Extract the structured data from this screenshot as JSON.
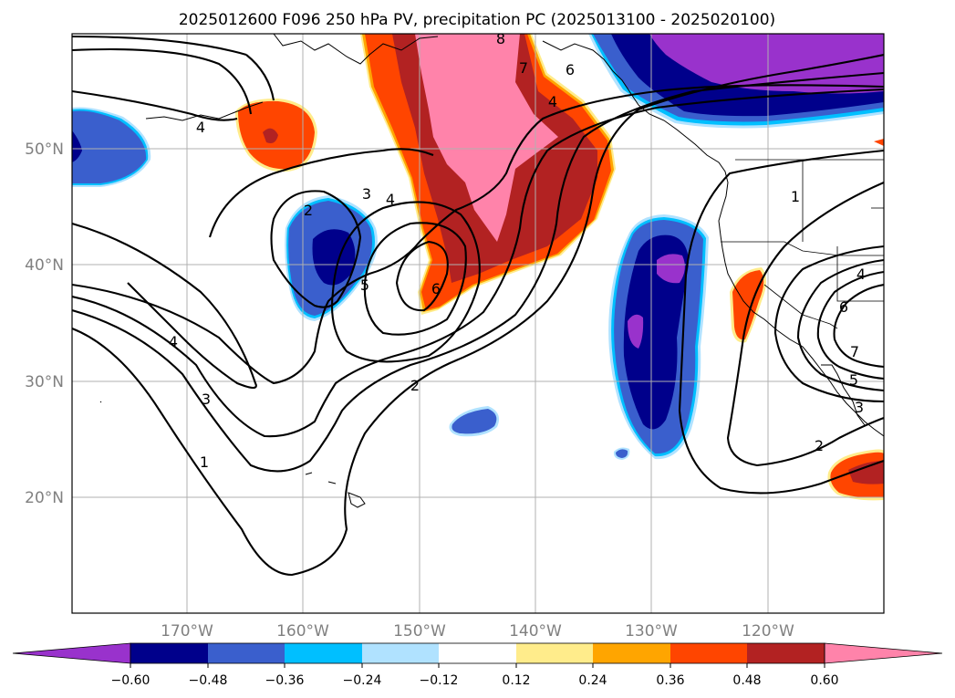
{
  "title": "2025012600 F096 250 hPa PV, precipitation PC (2025013100 - 2025020100)",
  "map": {
    "projection": "PlateCarree",
    "lon_range": [
      -180,
      -110
    ],
    "lat_range": [
      10,
      60
    ],
    "lat_labels": [
      "50°N",
      "40°N",
      "30°N",
      "20°N"
    ],
    "lon_labels": [
      "170°W",
      "160°W",
      "150°W",
      "140°W",
      "130°W",
      "120°W"
    ],
    "gridlines": true
  },
  "contours": {
    "field": "250 hPa PV",
    "labels": [
      "1",
      "2",
      "3",
      "4",
      "5",
      "6",
      "7",
      "8"
    ],
    "label_marks": [
      "4",
      "3",
      "4",
      "2",
      "5",
      "6",
      "2",
      "4",
      "3",
      "1",
      "7",
      "6",
      "4",
      "8",
      "1",
      "4",
      "6",
      "7",
      "5",
      "3",
      "2"
    ]
  },
  "colorbar": {
    "ticks": [
      "−0.60",
      "−0.48",
      "−0.36",
      "−0.24",
      "−0.12",
      "0.12",
      "0.24",
      "0.36",
      "0.48",
      "0.60"
    ],
    "extend": "both",
    "colors": {
      "lt_-0.60": "#9932cc",
      "-0.60_-0.48": "#00008b",
      "-0.48_-0.36": "#3a5fcd",
      "-0.36_-0.24": "#00bfff",
      "-0.24_-0.12": "#b0e2ff",
      "-0.12_0.12": "#ffffff",
      "0.12_0.24": "#ffec8b",
      "0.24_0.36": "#ffa500",
      "0.36_0.48": "#ff4500",
      "0.48_0.60": "#b22222",
      "gt_0.60": "#ff83aa"
    }
  }
}
